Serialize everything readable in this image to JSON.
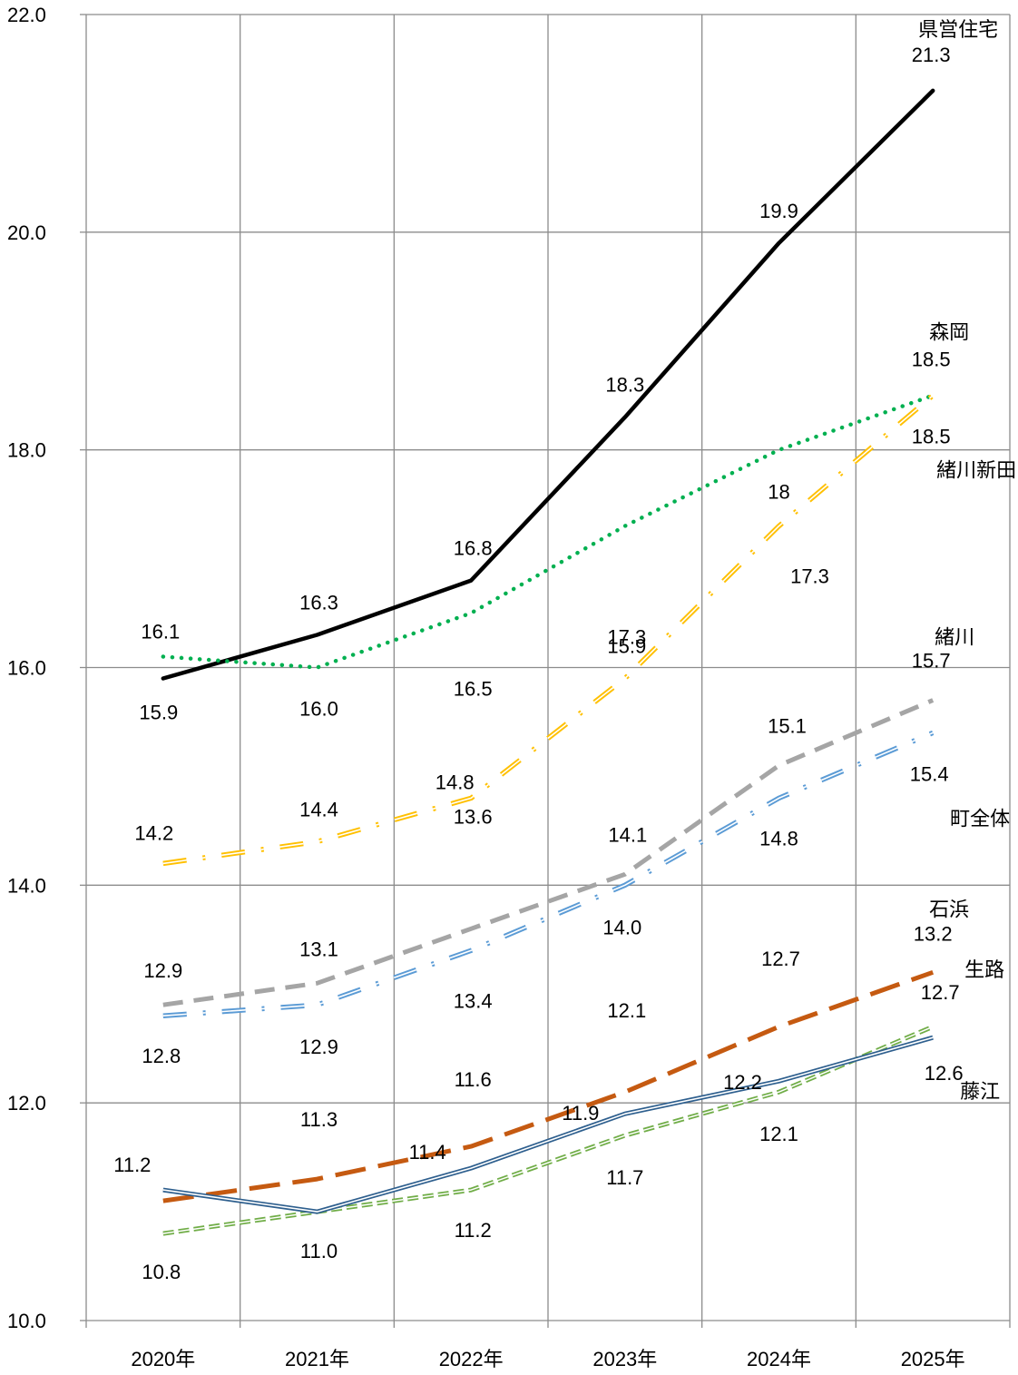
{
  "chart_data": {
    "type": "line",
    "categories": [
      "2020年",
      "2021年",
      "2022年",
      "2023年",
      "2024年",
      "2025年"
    ],
    "ylim": [
      10.0,
      22.0
    ],
    "yticks": [
      "10.0",
      "12.0",
      "14.0",
      "16.0",
      "18.0",
      "20.0",
      "22.0"
    ],
    "grid": true,
    "series": [
      {
        "name": "県営住宅",
        "values": [
          15.9,
          16.3,
          16.8,
          18.3,
          19.9,
          21.3
        ],
        "labels": [
          "15.9",
          "16.3",
          "16.8",
          "18.3",
          "19.9",
          "21.3"
        ],
        "color": "#000000",
        "style": "solid-thick"
      },
      {
        "name": "森岡",
        "values": [
          16.1,
          16.0,
          16.5,
          17.3,
          18.0,
          18.5
        ],
        "labels": [
          "16.1",
          "16.0",
          "16.5",
          "17.3",
          "18",
          "18.5"
        ],
        "color": "#00b050",
        "style": "dotted"
      },
      {
        "name": "緒川新田",
        "values": [
          14.2,
          14.4,
          14.8,
          15.9,
          17.3,
          18.5
        ],
        "labels": [
          "14.2",
          "14.4",
          "14.8",
          "15.9",
          "17.3",
          "18.5"
        ],
        "color": "#ffc000",
        "style": "double-dashdot"
      },
      {
        "name": "緒川",
        "values": [
          12.9,
          13.1,
          13.6,
          14.1,
          15.1,
          15.7
        ],
        "labels": [
          "12.9",
          "13.1",
          "13.6",
          "14.1",
          "15.1",
          "15.7"
        ],
        "color": "#a5a5a5",
        "style": "dashed-thick"
      },
      {
        "name": "町全体",
        "values": [
          12.8,
          12.9,
          13.4,
          14.0,
          14.8,
          15.4
        ],
        "labels": [
          "12.8",
          "12.9",
          "13.4",
          "14.0",
          "14.8",
          "15.4"
        ],
        "color": "#5b9bd5",
        "style": "double-dashdot"
      },
      {
        "name": "石浜",
        "values": [
          11.1,
          11.3,
          11.6,
          12.1,
          12.7,
          13.2
        ],
        "labels": [
          "",
          "11.3",
          "11.6",
          "12.1",
          "12.7",
          "13.2"
        ],
        "color": "#c55a11",
        "style": "long-dash"
      },
      {
        "name": "生路",
        "values": [
          10.8,
          11.0,
          11.2,
          11.7,
          12.1,
          12.7
        ],
        "labels": [
          "10.8",
          "11.0",
          "11.2",
          "11.7",
          "12.1",
          "12.7"
        ],
        "color": "#70ad47",
        "style": "double-dash"
      },
      {
        "name": "藤江",
        "values": [
          11.2,
          11.0,
          11.4,
          11.9,
          12.2,
          12.6
        ],
        "labels": [
          "11.2",
          "",
          "11.4",
          "11.9",
          "12.2",
          "12.6"
        ],
        "color": "#2e5f8e",
        "style": "double-solid"
      }
    ]
  }
}
